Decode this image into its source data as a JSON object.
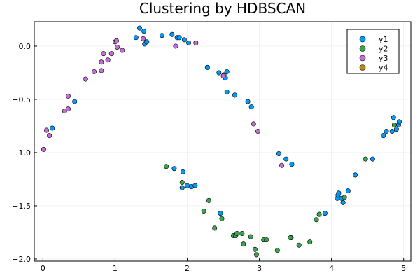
{
  "chart_data": {
    "type": "scatter",
    "title": "Clustering by HDBSCAN",
    "xlabel": "",
    "ylabel": "",
    "xlim": [
      -0.12,
      5.1
    ],
    "ylim": [
      -2.02,
      0.23
    ],
    "xticks": [
      0,
      1,
      2,
      3,
      4,
      5
    ],
    "yticks": [
      0.0,
      -0.5,
      -1.0,
      -1.5,
      -2.0
    ],
    "xtick_labels": [
      "0",
      "1",
      "2",
      "3",
      "4",
      "5"
    ],
    "ytick_labels": [
      "0.0",
      "−0.5",
      "−1.0",
      "−1.5",
      "−2.0"
    ],
    "grid": true,
    "legend_position": "top-right",
    "series": [
      {
        "name": "y1",
        "color": "#009AFA",
        "points": [
          [
            0.13,
            -0.77
          ],
          [
            0.44,
            -0.52
          ],
          [
            1.29,
            0.08
          ],
          [
            1.34,
            0.17
          ],
          [
            1.4,
            0.14
          ],
          [
            1.41,
            0.02
          ],
          [
            1.44,
            0.04
          ],
          [
            1.65,
            0.1
          ],
          [
            1.79,
            0.11
          ],
          [
            1.86,
            0.08
          ],
          [
            1.89,
            0.08
          ],
          [
            1.96,
            0.06
          ],
          [
            2.02,
            0.03
          ],
          [
            2.28,
            -0.2
          ],
          [
            2.44,
            -0.25
          ],
          [
            2.51,
            -0.27
          ],
          [
            2.53,
            -0.3
          ],
          [
            2.55,
            -0.24
          ],
          [
            2.55,
            -0.43
          ],
          [
            2.66,
            -0.46
          ],
          [
            2.84,
            -0.52
          ],
          [
            2.89,
            -0.57
          ],
          [
            3.27,
            -1.01
          ],
          [
            3.37,
            -1.06
          ],
          [
            3.45,
            -1.11
          ],
          [
            1.82,
            -1.15
          ],
          [
            1.94,
            -1.18
          ],
          [
            2.0,
            -1.31
          ],
          [
            2.06,
            -1.32
          ],
          [
            2.11,
            -1.31
          ],
          [
            1.93,
            -1.33
          ],
          [
            2.46,
            -1.57
          ],
          [
            3.91,
            -1.57
          ],
          [
            4.08,
            -1.43
          ],
          [
            4.09,
            -1.4
          ],
          [
            4.1,
            -1.38
          ],
          [
            4.14,
            -1.43
          ],
          [
            4.16,
            -1.47
          ],
          [
            4.23,
            -1.36
          ],
          [
            4.33,
            -1.21
          ],
          [
            4.57,
            -1.06
          ],
          [
            4.72,
            -0.84
          ],
          [
            4.76,
            -0.8
          ],
          [
            4.84,
            -0.8
          ],
          [
            4.86,
            -0.67
          ],
          [
            4.9,
            -0.78
          ],
          [
            4.93,
            -0.74
          ],
          [
            4.94,
            -0.71
          ],
          [
            3.44,
            -1.8
          ]
        ]
      },
      {
        "name": "y2",
        "color": "#3DA44D",
        "points": [
          [
            1.71,
            -1.13
          ],
          [
            1.93,
            -1.28
          ],
          [
            2.23,
            -1.55
          ],
          [
            2.3,
            -1.45
          ],
          [
            2.38,
            -1.71
          ],
          [
            2.48,
            -1.62
          ],
          [
            2.64,
            -1.78
          ],
          [
            2.67,
            -1.78
          ],
          [
            2.69,
            -1.76
          ],
          [
            2.76,
            -1.76
          ],
          [
            2.78,
            -1.86
          ],
          [
            2.88,
            -1.79
          ],
          [
            2.94,
            -1.91
          ],
          [
            2.96,
            -1.96
          ],
          [
            3.06,
            -1.82
          ],
          [
            3.1,
            -1.82
          ],
          [
            3.25,
            -1.92
          ],
          [
            3.43,
            -1.8
          ],
          [
            3.55,
            -1.87
          ],
          [
            3.7,
            -1.84
          ],
          [
            3.79,
            -1.63
          ],
          [
            3.83,
            -1.58
          ],
          [
            4.18,
            -1.42
          ],
          [
            4.47,
            -1.06
          ],
          [
            4.87,
            -0.74
          ]
        ]
      },
      {
        "name": "y3",
        "color": "#C271D2",
        "points": [
          [
            0.01,
            -0.97
          ],
          [
            0.05,
            -0.79
          ],
          [
            0.09,
            -0.84
          ],
          [
            0.3,
            -0.61
          ],
          [
            0.35,
            -0.47
          ],
          [
            0.35,
            -0.59
          ],
          [
            0.59,
            -0.31
          ],
          [
            0.71,
            -0.24
          ],
          [
            0.81,
            -0.23
          ],
          [
            0.81,
            -0.15
          ],
          [
            0.84,
            -0.07
          ],
          [
            0.9,
            -0.13
          ],
          [
            0.95,
            -0.07
          ],
          [
            1.0,
            0.04
          ],
          [
            1.02,
            0.05
          ],
          [
            1.03,
            -0.01
          ],
          [
            1.1,
            -0.04
          ],
          [
            1.84,
            0.0
          ],
          [
            2.12,
            0.03
          ],
          [
            2.5,
            -0.28
          ],
          [
            2.92,
            -0.73
          ],
          [
            2.98,
            -0.8
          ],
          [
            3.31,
            -1.12
          ],
          [
            1.39,
            0.07
          ]
        ]
      },
      {
        "name": "y4",
        "color": "#AC8D18",
        "points": []
      }
    ]
  }
}
